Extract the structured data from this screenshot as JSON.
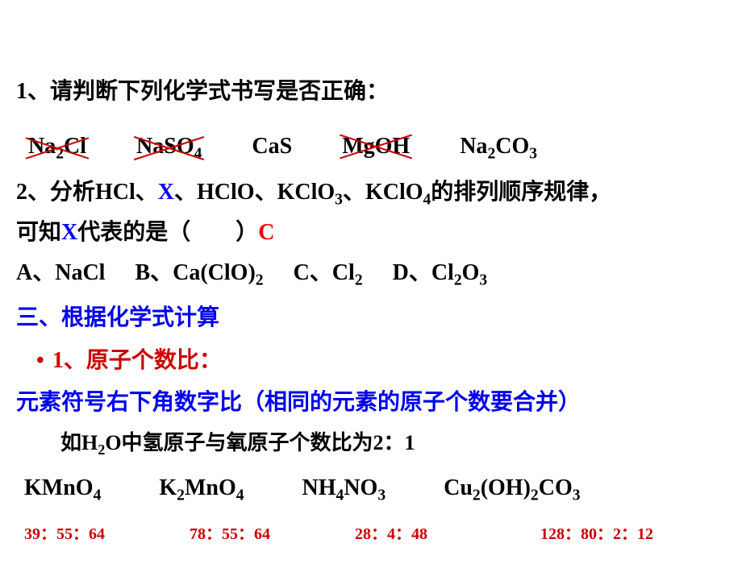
{
  "q1": {
    "title": "1、请判断下列化学式书写是否正确：",
    "formulas": [
      {
        "text": "Na₂Cl",
        "wrong": true
      },
      {
        "text": "NaSO₄",
        "wrong": true
      },
      {
        "text": "CaS",
        "wrong": false
      },
      {
        "text": "MgOH",
        "wrong": true
      },
      {
        "text": "Na₂CO₃",
        "wrong": false
      }
    ]
  },
  "q2": {
    "prefix": "2、分析HCl、",
    "x1": "X",
    "mid": "、HClO、KClO₃、KClO₄的排列顺序规律，",
    "line2a": "可知",
    "x2": "X",
    "line2b": "代表的是（　　）",
    "answer": "C",
    "options": {
      "a": "A、NaCl",
      "b": "B、Ca(ClO)₂",
      "c": "C、Cl₂",
      "d": "D、Cl₂O₃"
    }
  },
  "section3": {
    "title": "三、根据化学式计算",
    "sub1": "1、原子个数比：",
    "rule": "元素符号右下角数字比（相同的元素的原子个数要合并）",
    "example": "如H₂O中氢原子与氧原子个数比为2：1",
    "compounds": {
      "c1": "KMnO₄",
      "c2": "K₂MnO₄",
      "c3": "NH₄NO₃",
      "c4": "Cu₂(OH)₂CO₃"
    },
    "ratios": {
      "r1": "39：55：64",
      "r2": "78：55：64",
      "r3": "28：4：48",
      "r4": "128：80：2：12"
    }
  },
  "colors": {
    "red": "#ee0000",
    "blue": "#0000ee",
    "darkred": "#990000",
    "black": "#000000",
    "crossout": "#cc0000",
    "background": "#ffffff"
  },
  "fontsize": {
    "main": 28,
    "example": 26,
    "ratios": 20
  }
}
